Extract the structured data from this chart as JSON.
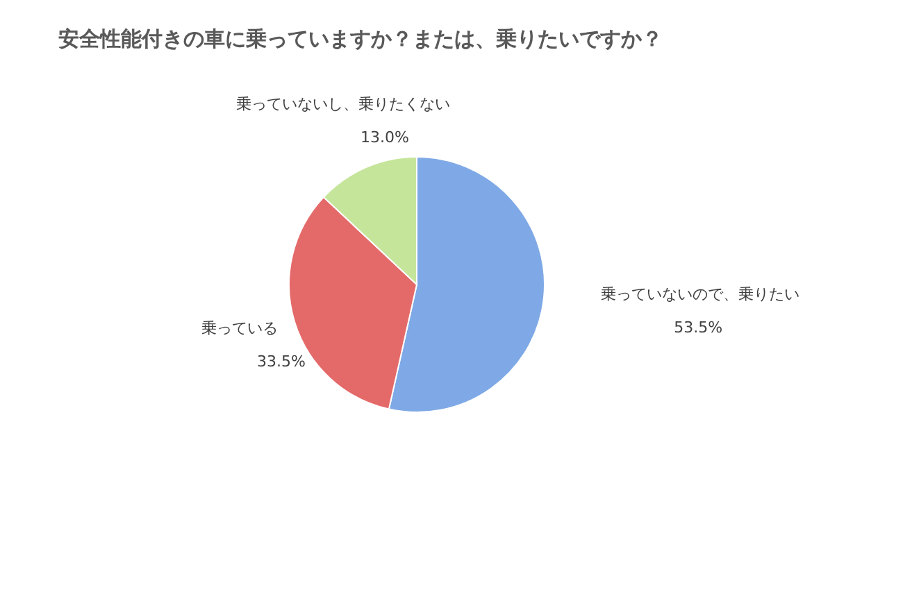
{
  "chart_data": {
    "type": "pie",
    "title": "安全性能付きの車に乗っていますか？または、乗りたいですか？",
    "categories": [
      "乗っていないので、乗りたい",
      "乗っている",
      "乗っていないし、乗りたくない"
    ],
    "values": [
      53.5,
      33.5,
      13.0
    ],
    "value_labels": [
      "53.5%",
      "33.5%",
      "13.0%"
    ],
    "colors": [
      "#7fa9e6",
      "#e46a6a",
      "#c5e59a"
    ]
  }
}
